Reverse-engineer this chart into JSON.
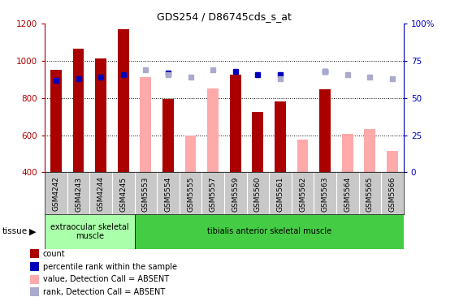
{
  "title": "GDS254 / D86745cds_s_at",
  "samples": [
    "GSM4242",
    "GSM4243",
    "GSM4244",
    "GSM4245",
    "GSM5553",
    "GSM5554",
    "GSM5555",
    "GSM5557",
    "GSM5559",
    "GSM5560",
    "GSM5561",
    "GSM5562",
    "GSM5563",
    "GSM5564",
    "GSM5565",
    "GSM5566"
  ],
  "count_present": [
    950,
    1065,
    1015,
    1170,
    null,
    795,
    null,
    null,
    928,
    726,
    782,
    null,
    847,
    null,
    null,
    null
  ],
  "count_absent": [
    null,
    null,
    null,
    null,
    913,
    null,
    600,
    850,
    null,
    null,
    null,
    575,
    null,
    607,
    635,
    515
  ],
  "percentile_present": [
    62,
    63,
    64,
    66,
    null,
    67,
    null,
    null,
    68,
    66,
    66,
    null,
    68,
    null,
    null,
    null
  ],
  "percentile_absent": [
    null,
    null,
    null,
    null,
    69,
    66,
    64,
    69,
    null,
    null,
    63,
    null,
    68,
    66,
    64,
    63
  ],
  "tissue_groups": [
    {
      "label": "extraocular skeletal\nmuscle",
      "start": 0,
      "end": 4,
      "color": "#aaffaa"
    },
    {
      "label": "tibialis anterior skeletal muscle",
      "start": 4,
      "end": 16,
      "color": "#44cc44"
    }
  ],
  "ylim_left": [
    400,
    1200
  ],
  "ylim_right": [
    0,
    100
  ],
  "yticks_left": [
    400,
    600,
    800,
    1000,
    1200
  ],
  "yticks_right": [
    0,
    25,
    50,
    75,
    100
  ],
  "right_tick_labels": [
    "0",
    "25",
    "50",
    "75",
    "100%"
  ],
  "color_dark_red": "#aa0000",
  "color_pink": "#ffaaaa",
  "color_blue": "#0000bb",
  "color_light_blue": "#aaaacc",
  "bg_color": "#c8c8c8",
  "legend_items": [
    {
      "label": "count",
      "color": "#aa0000"
    },
    {
      "label": "percentile rank within the sample",
      "color": "#0000bb"
    },
    {
      "label": "value, Detection Call = ABSENT",
      "color": "#ffaaaa"
    },
    {
      "label": "rank, Detection Call = ABSENT",
      "color": "#aaaacc"
    }
  ]
}
